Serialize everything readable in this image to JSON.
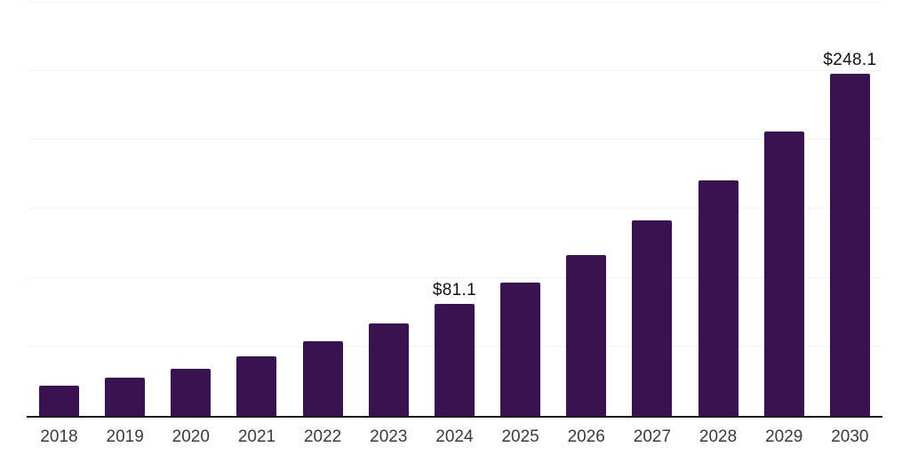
{
  "chart_data": {
    "type": "bar",
    "categories": [
      "2018",
      "2019",
      "2020",
      "2021",
      "2022",
      "2023",
      "2024",
      "2025",
      "2026",
      "2027",
      "2028",
      "2029",
      "2030"
    ],
    "values": [
      21.6,
      27.6,
      34.3,
      42.9,
      53.9,
      67.2,
      81.1,
      96.5,
      116.8,
      141.4,
      170.4,
      206.2,
      248.1
    ],
    "bar_labels": [
      null,
      null,
      null,
      null,
      null,
      null,
      "$81.1",
      null,
      null,
      null,
      null,
      null,
      "$248.1"
    ],
    "title": "",
    "xlabel": "",
    "ylabel": "",
    "ylim": [
      0,
      300
    ],
    "grid_step": 50,
    "grid": true,
    "legend": false,
    "colors": {
      "bar": "#3a1252",
      "axis": "#1a1a1a",
      "gridline": "#f2f2f2",
      "value_label": "#111111",
      "tick_label": "#3a3a3a",
      "background": "#ffffff"
    }
  }
}
